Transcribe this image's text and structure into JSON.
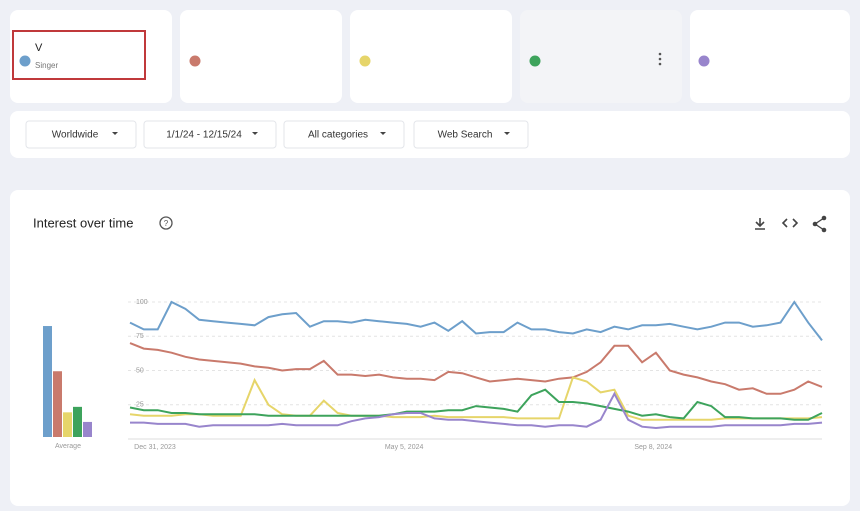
{
  "terms": [
    {
      "title": "V",
      "subtitle": "Singer"
    }
  ],
  "filters": [
    "Worldwide",
    "1/1/24 - 12/15/24",
    "All categories",
    "Web Search"
  ],
  "chart_data": {
    "type": "line",
    "title": "Interest over time",
    "average_label": "Average",
    "categories": [
      "Dec 31, 2023",
      null,
      null,
      null,
      null,
      null,
      null,
      null,
      null,
      null,
      null,
      null,
      null,
      null,
      null,
      null,
      null,
      null,
      "May 5, 2024",
      null,
      null,
      null,
      null,
      null,
      null,
      null,
      null,
      null,
      null,
      null,
      null,
      null,
      null,
      null,
      null,
      null,
      "Sep 8, 2024",
      null,
      null,
      null,
      null,
      null,
      null,
      null,
      null,
      null,
      null,
      null,
      null,
      null,
      null
    ],
    "ylim": [
      0,
      100
    ],
    "yticks": [
      25,
      50,
      75,
      100
    ],
    "grid": true,
    "series": [
      {
        "color": "#6d9fcb",
        "average": 81,
        "values": [
          85,
          80,
          80,
          100,
          95,
          87,
          86,
          85,
          84,
          83,
          89,
          91,
          92,
          82,
          86,
          86,
          85,
          87,
          86,
          85,
          84,
          82,
          85,
          79,
          86,
          77,
          78,
          78,
          85,
          80,
          80,
          78,
          77,
          80,
          78,
          82,
          80,
          83,
          83,
          84,
          82,
          80,
          82,
          85,
          85,
          82,
          83,
          85,
          100,
          85,
          72
        ]
      },
      {
        "color": "#c97a6c",
        "average": 48,
        "values": [
          70,
          66,
          65,
          63,
          60,
          58,
          57,
          56,
          55,
          53,
          52,
          50,
          51,
          51,
          57,
          47,
          47,
          46,
          47,
          45,
          44,
          44,
          43,
          49,
          48,
          45,
          42,
          43,
          44,
          43,
          42,
          44,
          45,
          49,
          56,
          68,
          68,
          56,
          63,
          50,
          47,
          45,
          42,
          40,
          36,
          37,
          33,
          33,
          36,
          42,
          38
        ]
      },
      {
        "color": "#e6d56a",
        "average": 18,
        "values": [
          18,
          17,
          17,
          17,
          18,
          18,
          17,
          17,
          17,
          43,
          25,
          18,
          17,
          17,
          28,
          19,
          17,
          17,
          17,
          16,
          16,
          16,
          17,
          16,
          16,
          16,
          16,
          16,
          15,
          15,
          15,
          15,
          45,
          42,
          34,
          36,
          17,
          14,
          14,
          14,
          14,
          14,
          14,
          15,
          15,
          15,
          15,
          15,
          15,
          15,
          16
        ]
      },
      {
        "color": "#3da35c",
        "average": 22,
        "values": [
          23,
          21,
          21,
          19,
          19,
          18,
          18,
          18,
          18,
          18,
          17,
          17,
          17,
          17,
          17,
          17,
          17,
          17,
          17,
          18,
          20,
          20,
          20,
          21,
          21,
          24,
          23,
          22,
          20,
          32,
          36,
          27,
          27,
          26,
          24,
          22,
          20,
          17,
          18,
          16,
          15,
          27,
          24,
          16,
          16,
          15,
          15,
          15,
          14,
          14,
          19
        ]
      },
      {
        "color": "#9885cc",
        "average": 11,
        "values": [
          12,
          12,
          11,
          11,
          11,
          9,
          10,
          10,
          10,
          10,
          10,
          11,
          10,
          10,
          10,
          10,
          13,
          15,
          16,
          18,
          19,
          19,
          15,
          14,
          14,
          13,
          12,
          11,
          10,
          10,
          9,
          10,
          10,
          9,
          14,
          33,
          14,
          9,
          8,
          9,
          9,
          9,
          9,
          10,
          10,
          10,
          10,
          10,
          11,
          11,
          12
        ]
      }
    ]
  }
}
